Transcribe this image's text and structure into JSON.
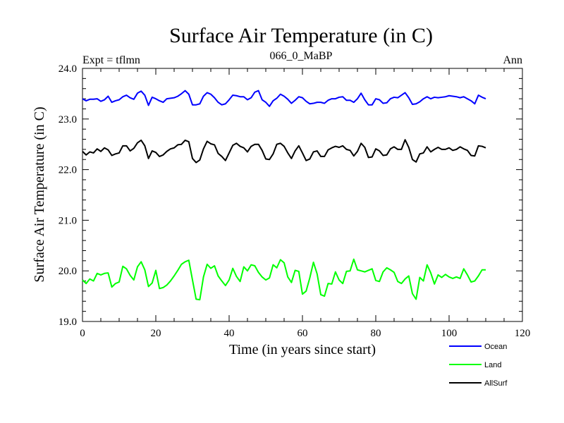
{
  "chart_data": {
    "type": "line",
    "title": "Surface Air Temperature (in C)",
    "subtitle": "066_0_MaBP",
    "left_label": "Expt = tflmn",
    "right_label": "Ann",
    "xlabel": "Time (in years since start)",
    "ylabel": "Surface Air Temperature (in C)",
    "xlim": [
      0,
      120
    ],
    "ylim": [
      19.0,
      24.0
    ],
    "xticks": [
      0,
      20,
      40,
      60,
      80,
      100,
      120
    ],
    "xtick_labels": [
      "0",
      "20",
      "40",
      "60",
      "80",
      "100",
      "120"
    ],
    "yticks": [
      19.0,
      20.0,
      21.0,
      22.0,
      23.0,
      24.0
    ],
    "ytick_labels": [
      "19.0",
      "20.0",
      "21.0",
      "22.0",
      "23.0",
      "24.0"
    ],
    "grid": false,
    "legend_position": "bottom-right",
    "x": [
      0,
      1,
      2,
      3,
      4,
      5,
      6,
      7,
      8,
      9,
      10,
      11,
      12,
      13,
      14,
      15,
      16,
      17,
      18,
      19,
      20,
      21,
      22,
      23,
      24,
      25,
      26,
      27,
      28,
      29,
      30,
      31,
      32,
      33,
      34,
      35,
      36,
      37,
      38,
      39,
      40,
      41,
      42,
      43,
      44,
      45,
      46,
      47,
      48,
      49,
      50,
      51,
      52,
      53,
      54,
      55,
      56,
      57,
      58,
      59,
      60,
      61,
      62,
      63,
      64,
      65,
      66,
      67,
      68,
      69,
      70,
      71,
      72,
      73,
      74,
      75,
      76,
      77,
      78,
      79,
      80,
      81,
      82,
      83,
      84,
      85,
      86,
      87,
      88,
      89,
      90,
      91,
      92,
      93,
      94,
      95,
      96,
      97,
      98,
      99,
      100,
      101,
      102,
      103,
      104,
      105,
      106,
      107,
      108,
      109,
      110
    ],
    "series": [
      {
        "name": "Ocean",
        "color": "#0000ff",
        "values": [
          23.4,
          23.36,
          23.39,
          23.39,
          23.4,
          23.35,
          23.38,
          23.45,
          23.33,
          23.36,
          23.38,
          23.44,
          23.47,
          23.42,
          23.39,
          23.51,
          23.55,
          23.47,
          23.27,
          23.43,
          23.4,
          23.36,
          23.33,
          23.4,
          23.41,
          23.42,
          23.45,
          23.5,
          23.56,
          23.49,
          23.28,
          23.28,
          23.3,
          23.45,
          23.52,
          23.49,
          23.42,
          23.33,
          23.28,
          23.3,
          23.38,
          23.47,
          23.46,
          23.44,
          23.44,
          23.38,
          23.42,
          23.53,
          23.56,
          23.38,
          23.33,
          23.25,
          23.36,
          23.41,
          23.49,
          23.45,
          23.39,
          23.31,
          23.37,
          23.44,
          23.42,
          23.35,
          23.3,
          23.31,
          23.33,
          23.33,
          23.31,
          23.37,
          23.4,
          23.4,
          23.43,
          23.44,
          23.37,
          23.37,
          23.33,
          23.4,
          23.51,
          23.38,
          23.28,
          23.28,
          23.4,
          23.38,
          23.31,
          23.32,
          23.4,
          23.43,
          23.42,
          23.47,
          23.52,
          23.42,
          23.29,
          23.3,
          23.34,
          23.4,
          23.44,
          23.4,
          23.43,
          23.42,
          23.43,
          23.44,
          23.46,
          23.45,
          23.44,
          23.42,
          23.44,
          23.4,
          23.36,
          23.3,
          23.47,
          23.43,
          23.4
        ]
      },
      {
        "name": "Land",
        "color": "#00ff00",
        "values": [
          19.82,
          19.75,
          19.84,
          19.8,
          19.95,
          19.92,
          19.95,
          19.96,
          19.68,
          19.75,
          19.78,
          20.09,
          20.04,
          19.91,
          19.82,
          20.08,
          20.18,
          20.02,
          19.69,
          19.76,
          20.01,
          19.65,
          19.67,
          19.72,
          19.8,
          19.9,
          20.01,
          20.13,
          20.18,
          20.21,
          19.82,
          19.44,
          19.43,
          19.88,
          20.13,
          20.05,
          20.1,
          19.9,
          19.8,
          19.71,
          19.82,
          20.05,
          19.89,
          19.79,
          20.08,
          20.0,
          20.12,
          20.1,
          19.97,
          19.88,
          19.82,
          19.86,
          20.12,
          20.06,
          20.22,
          20.16,
          19.88,
          19.77,
          20.01,
          19.99,
          19.54,
          19.6,
          19.86,
          20.17,
          19.94,
          19.53,
          19.5,
          19.75,
          19.74,
          19.98,
          19.82,
          19.75,
          19.99,
          20.0,
          20.23,
          20.02,
          20.0,
          19.98,
          20.01,
          20.04,
          19.81,
          19.79,
          19.98,
          20.06,
          20.02,
          19.97,
          19.79,
          19.75,
          19.84,
          19.9,
          19.55,
          19.44,
          19.87,
          19.8,
          20.12,
          19.96,
          19.74,
          19.92,
          19.87,
          19.93,
          19.88,
          19.85,
          19.88,
          19.85,
          20.04,
          19.92,
          19.78,
          19.8,
          19.9,
          20.02,
          20.02
        ]
      },
      {
        "name": "AllSurf",
        "color": "#000000",
        "values": [
          22.36,
          22.29,
          22.35,
          22.33,
          22.41,
          22.36,
          22.43,
          22.39,
          22.28,
          22.31,
          22.33,
          22.47,
          22.47,
          22.37,
          22.42,
          22.53,
          22.58,
          22.47,
          22.22,
          22.37,
          22.34,
          22.26,
          22.29,
          22.36,
          22.41,
          22.43,
          22.49,
          22.5,
          22.58,
          22.55,
          22.22,
          22.14,
          22.19,
          22.41,
          22.56,
          22.51,
          22.49,
          22.32,
          22.26,
          22.18,
          22.33,
          22.48,
          22.52,
          22.46,
          22.43,
          22.35,
          22.46,
          22.5,
          22.5,
          22.38,
          22.21,
          22.2,
          22.31,
          22.5,
          22.52,
          22.46,
          22.33,
          22.22,
          22.37,
          22.47,
          22.33,
          22.18,
          22.21,
          22.35,
          22.37,
          22.26,
          22.26,
          22.39,
          22.43,
          22.46,
          22.44,
          22.47,
          22.4,
          22.38,
          22.27,
          22.36,
          22.52,
          22.44,
          22.24,
          22.25,
          22.41,
          22.37,
          22.28,
          22.29,
          22.41,
          22.45,
          22.4,
          22.4,
          22.59,
          22.44,
          22.2,
          22.15,
          22.31,
          22.33,
          22.45,
          22.35,
          22.4,
          22.44,
          22.4,
          22.4,
          22.43,
          22.38,
          22.4,
          22.45,
          22.41,
          22.38,
          22.28,
          22.27,
          22.47,
          22.46,
          22.43
        ]
      }
    ]
  }
}
